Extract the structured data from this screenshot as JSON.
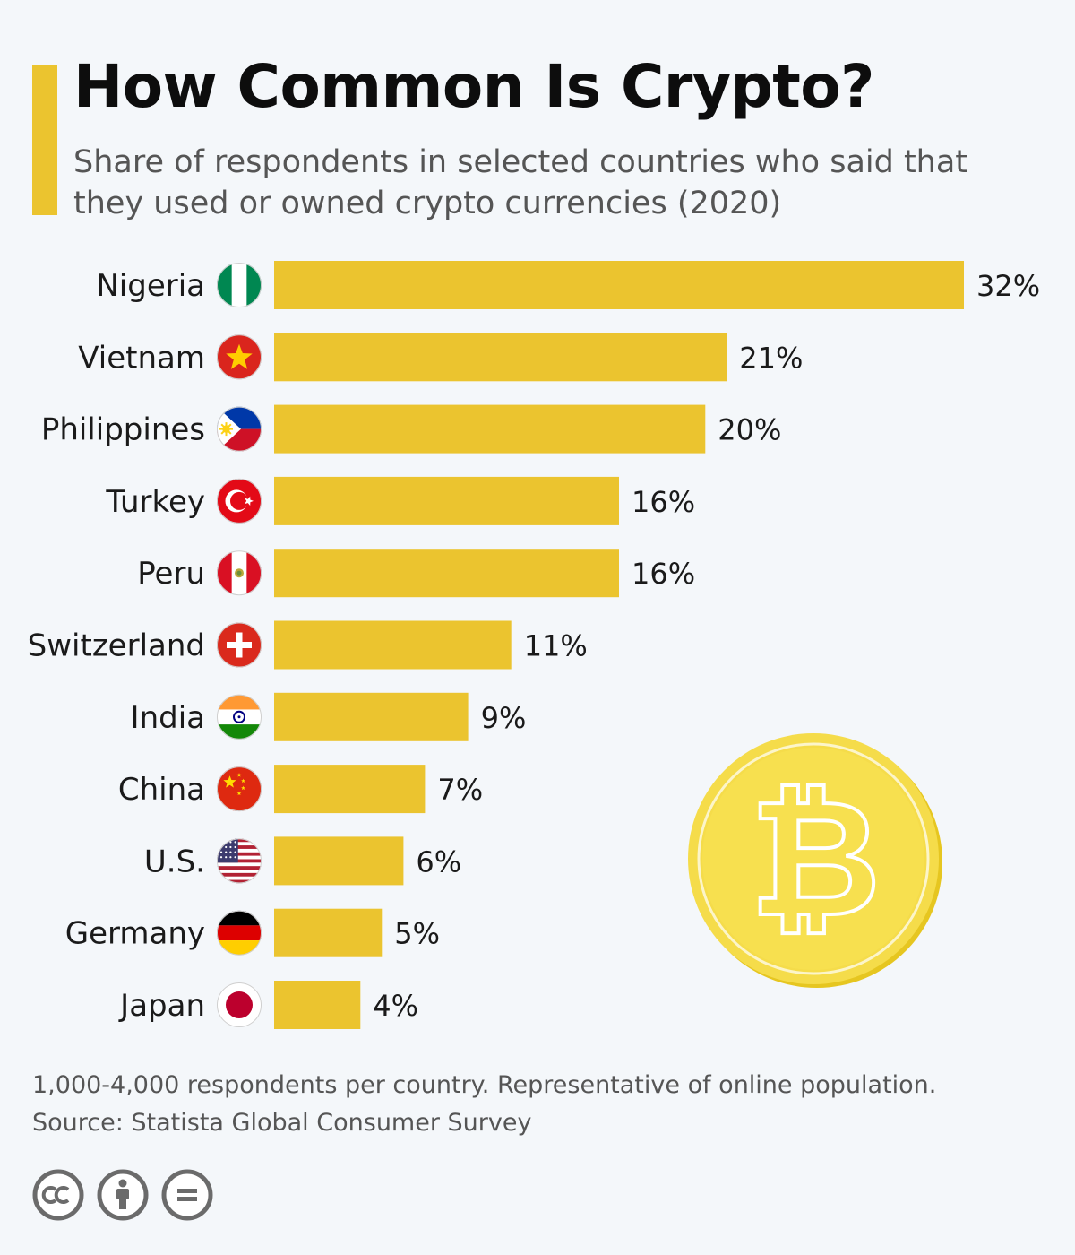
{
  "header": {
    "title": "How Common Is Crypto?",
    "subtitle": "Share of respondents in selected countries who said that they used or owned crypto currencies (2020)"
  },
  "chart_data": {
    "type": "bar",
    "orientation": "horizontal",
    "title": "How Common Is Crypto?",
    "subtitle": "Share of respondents in selected countries who said that they used or owned crypto currencies (2020)",
    "categories": [
      "Nigeria",
      "Vietnam",
      "Philippines",
      "Turkey",
      "Peru",
      "Switzerland",
      "India",
      "China",
      "U.S.",
      "Germany",
      "Japan"
    ],
    "values": [
      32,
      21,
      20,
      16,
      16,
      11,
      9,
      7,
      6,
      5,
      4
    ],
    "value_labels": [
      "32%",
      "21%",
      "20%",
      "16%",
      "16%",
      "11%",
      "9%",
      "7%",
      "6%",
      "5%",
      "4%"
    ],
    "flags": [
      "nigeria-flag-icon",
      "vietnam-flag-icon",
      "philippines-flag-icon",
      "turkey-flag-icon",
      "peru-flag-icon",
      "switzerland-flag-icon",
      "india-flag-icon",
      "china-flag-icon",
      "us-flag-icon",
      "germany-flag-icon",
      "japan-flag-icon"
    ],
    "unit": "%",
    "xlim": [
      0,
      32
    ],
    "bar_color": "#ebc42f",
    "grid": false,
    "legend": "none"
  },
  "decoration": {
    "coin_icon": "bitcoin-coin-icon",
    "coin_color": "#f5dc4a"
  },
  "footer": {
    "note": "1,000-4,000 respondents per country. Representative of online population.",
    "source": "Source: Statista Global Consumer Survey",
    "license_icons": [
      "cc-icon",
      "attribution-icon",
      "no-derivatives-icon"
    ]
  },
  "colors": {
    "accent": "#ebc42f",
    "background": "#f4f7fa",
    "text": "#1a1a1a",
    "muted": "#555555"
  }
}
